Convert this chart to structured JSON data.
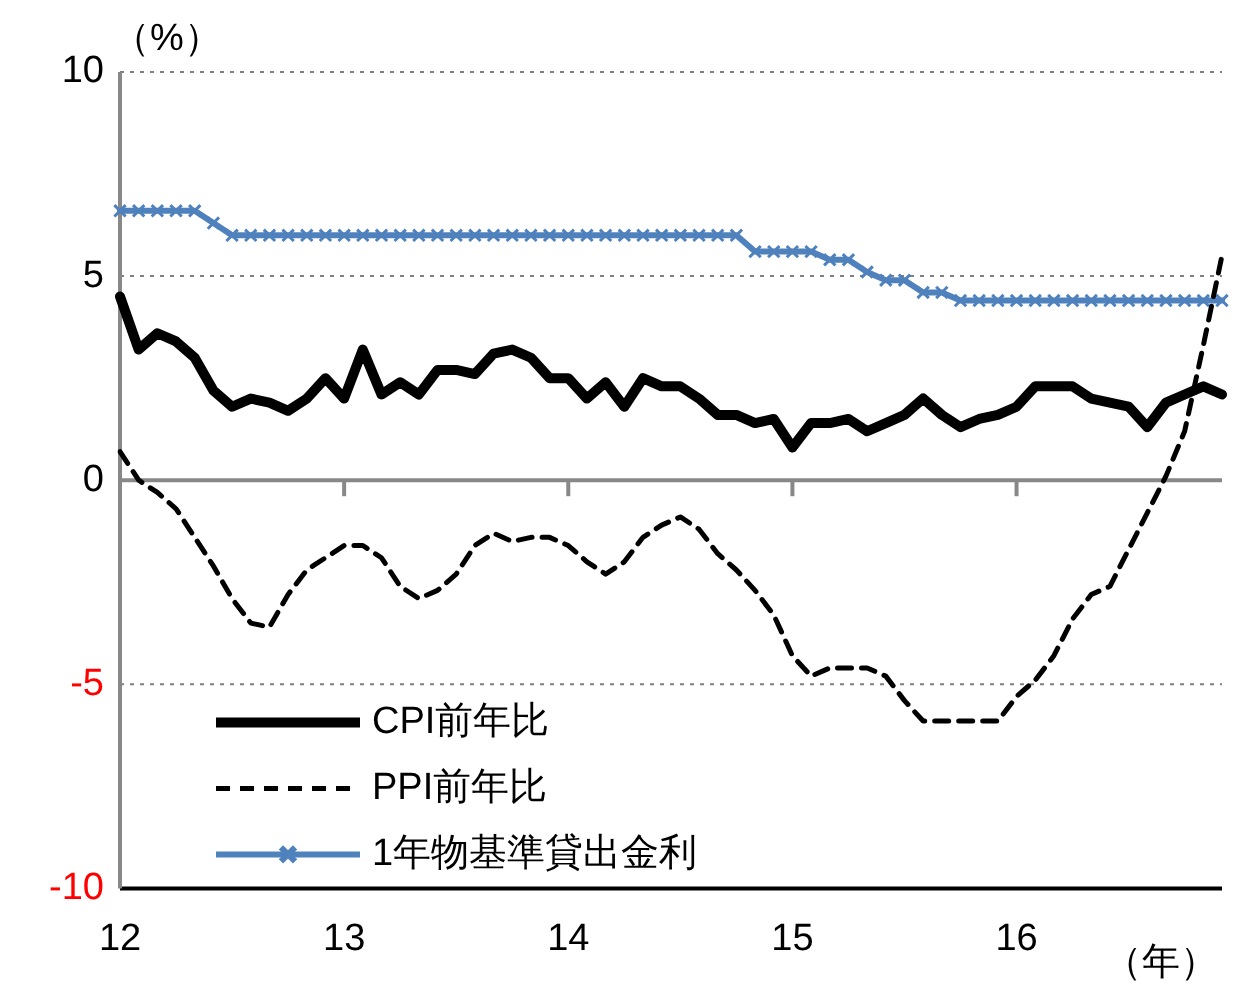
{
  "chart_data": {
    "type": "line",
    "ylabel": "（%）",
    "xlabel": "（年）",
    "categories": [
      "12",
      null,
      null,
      null,
      null,
      null,
      null,
      null,
      null,
      null,
      null,
      null,
      "13",
      null,
      null,
      null,
      null,
      null,
      null,
      null,
      null,
      null,
      null,
      null,
      "14",
      null,
      null,
      null,
      null,
      null,
      null,
      null,
      null,
      null,
      null,
      null,
      "15",
      null,
      null,
      null,
      null,
      null,
      null,
      null,
      null,
      null,
      null,
      null,
      "16",
      null,
      null,
      null,
      null,
      null,
      null,
      null,
      null,
      null,
      null,
      null
    ],
    "series": [
      {
        "name": "CPI前年比",
        "color": "#000000",
        "line_style": "solid",
        "marker": "none",
        "values": [
          4.5,
          3.2,
          3.6,
          3.4,
          3.0,
          2.2,
          1.8,
          2.0,
          1.9,
          1.7,
          2.0,
          2.5,
          2.0,
          3.2,
          2.1,
          2.4,
          2.1,
          2.7,
          2.7,
          2.6,
          3.1,
          3.2,
          3.0,
          2.5,
          2.5,
          2.0,
          2.4,
          1.8,
          2.5,
          2.3,
          2.3,
          2.0,
          1.6,
          1.6,
          1.4,
          1.5,
          0.8,
          1.4,
          1.4,
          1.5,
          1.2,
          1.4,
          1.6,
          2.0,
          1.6,
          1.3,
          1.5,
          1.6,
          1.8,
          2.3,
          2.3,
          2.3,
          2.0,
          1.9,
          1.8,
          1.3,
          1.9,
          2.1,
          2.3,
          2.1
        ]
      },
      {
        "name": "PPI前年比",
        "color": "#000000",
        "line_style": "dashed",
        "marker": "none",
        "values": [
          0.7,
          0.0,
          -0.3,
          -0.7,
          -1.4,
          -2.1,
          -2.9,
          -3.5,
          -3.6,
          -2.8,
          -2.2,
          -1.9,
          -1.6,
          -1.6,
          -1.9,
          -2.6,
          -2.9,
          -2.7,
          -2.3,
          -1.6,
          -1.3,
          -1.5,
          -1.4,
          -1.4,
          -1.6,
          -2.0,
          -2.3,
          -2.0,
          -1.4,
          -1.1,
          -0.9,
          -1.2,
          -1.8,
          -2.2,
          -2.7,
          -3.3,
          -4.3,
          -4.8,
          -4.6,
          -4.6,
          -4.6,
          -4.8,
          -5.4,
          -5.9,
          -5.9,
          -5.9,
          -5.9,
          -5.9,
          -5.3,
          -4.9,
          -4.3,
          -3.4,
          -2.8,
          -2.6,
          -1.7,
          -0.8,
          0.1,
          1.2,
          3.3,
          5.5
        ]
      },
      {
        "name": "1年物基準貸出金利",
        "color": "#4f81bd",
        "line_style": "solid",
        "marker": "cross",
        "values": [
          6.6,
          6.6,
          6.6,
          6.6,
          6.6,
          6.3,
          6.0,
          6.0,
          6.0,
          6.0,
          6.0,
          6.0,
          6.0,
          6.0,
          6.0,
          6.0,
          6.0,
          6.0,
          6.0,
          6.0,
          6.0,
          6.0,
          6.0,
          6.0,
          6.0,
          6.0,
          6.0,
          6.0,
          6.0,
          6.0,
          6.0,
          6.0,
          6.0,
          6.0,
          5.6,
          5.6,
          5.6,
          5.6,
          5.4,
          5.4,
          5.1,
          4.9,
          4.9,
          4.6,
          4.6,
          4.4,
          4.4,
          4.4,
          4.4,
          4.4,
          4.4,
          4.4,
          4.4,
          4.4,
          4.4,
          4.4,
          4.4,
          4.4,
          4.4,
          4.4
        ]
      }
    ],
    "ylim": [
      -10,
      10
    ],
    "yticks": [
      -10,
      -5,
      0,
      5,
      10
    ],
    "grid": "y",
    "legend": "bottom left"
  }
}
